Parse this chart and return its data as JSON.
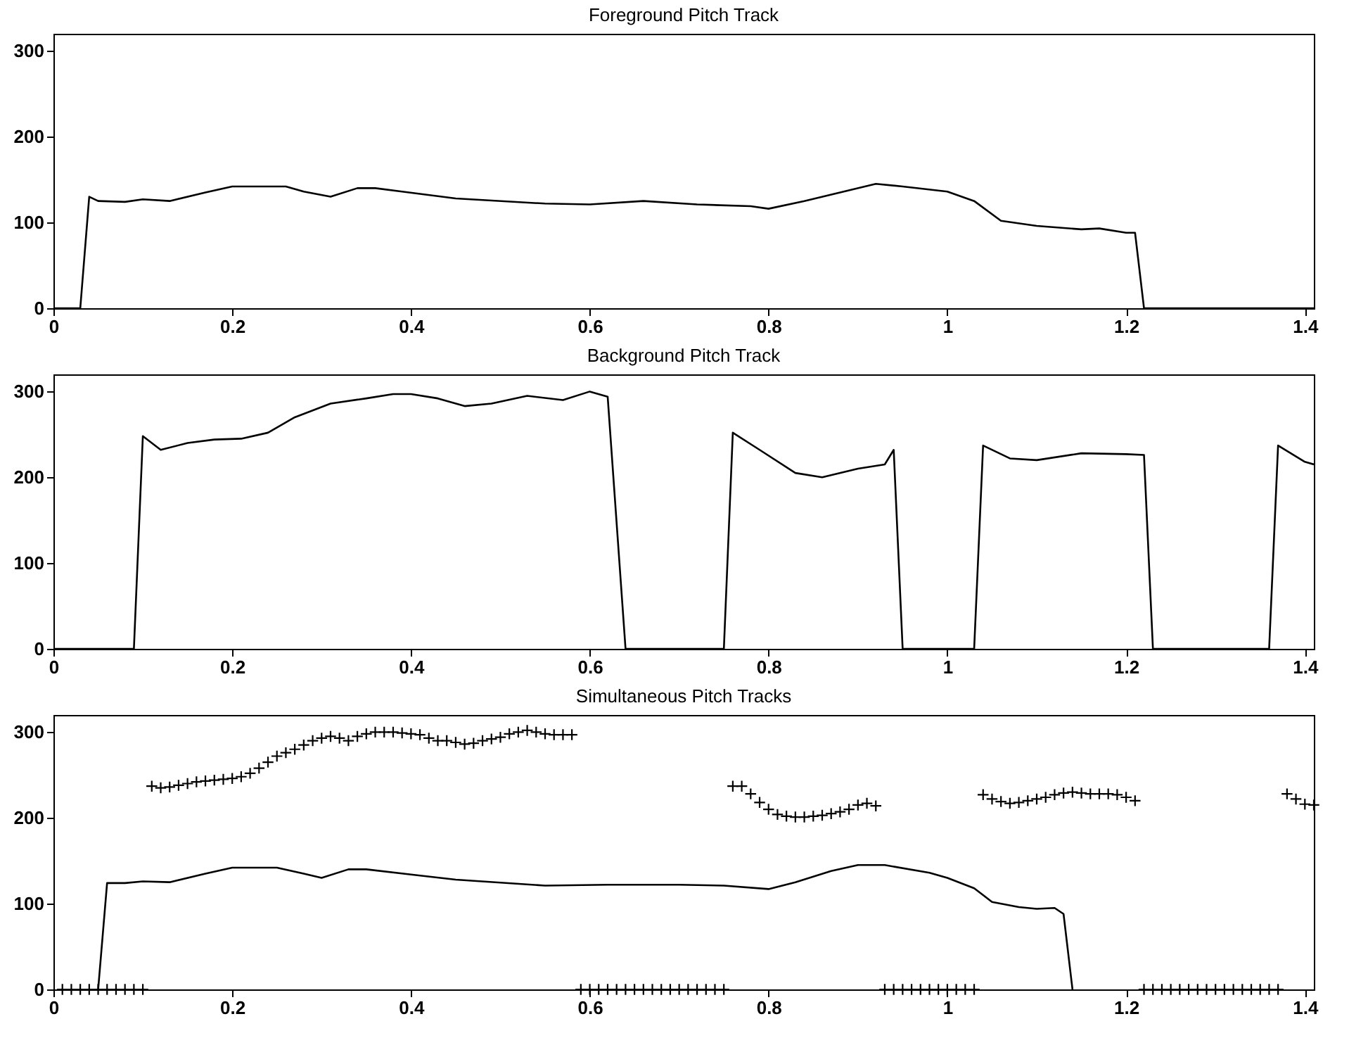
{
  "chart_data": [
    {
      "type": "line",
      "title": "Foreground Pitch Track",
      "color": "#000000",
      "line_style": "solid",
      "x": [
        0,
        0.03,
        0.04,
        0.05,
        0.08,
        0.1,
        0.13,
        0.17,
        0.2,
        0.26,
        0.28,
        0.31,
        0.34,
        0.36,
        0.39,
        0.45,
        0.55,
        0.6,
        0.66,
        0.72,
        0.78,
        0.8,
        0.84,
        0.88,
        0.92,
        0.95,
        1.0,
        1.03,
        1.06,
        1.1,
        1.15,
        1.17,
        1.2,
        1.21,
        1.22,
        1.41
      ],
      "values": [
        0,
        0,
        130,
        125,
        124,
        127,
        125,
        135,
        142,
        142,
        136,
        130,
        140,
        140,
        136,
        128,
        122,
        121,
        125,
        121,
        119,
        116,
        125,
        135,
        145,
        142,
        136,
        125,
        102,
        96,
        92,
        93,
        88,
        88,
        0,
        0
      ],
      "xlim": [
        0,
        1.41
      ],
      "ylim": [
        0,
        320
      ],
      "xticks": [
        0,
        0.2,
        0.4,
        0.6,
        0.8,
        1,
        1.2,
        1.4
      ],
      "yticks": [
        0,
        100,
        200,
        300
      ]
    },
    {
      "type": "line",
      "title": "Background Pitch Track",
      "color": "#000000",
      "line_style": "solid",
      "x": [
        0,
        0.09,
        0.1,
        0.12,
        0.15,
        0.18,
        0.21,
        0.24,
        0.27,
        0.31,
        0.35,
        0.38,
        0.4,
        0.43,
        0.46,
        0.49,
        0.53,
        0.57,
        0.6,
        0.62,
        0.64,
        0.75,
        0.76,
        0.79,
        0.83,
        0.86,
        0.9,
        0.93,
        0.94,
        0.95,
        1.03,
        1.04,
        1.07,
        1.1,
        1.15,
        1.2,
        1.22,
        1.23,
        1.36,
        1.37,
        1.4,
        1.41
      ],
      "values": [
        0,
        0,
        248,
        232,
        240,
        244,
        245,
        252,
        270,
        286,
        292,
        297,
        297,
        292,
        283,
        286,
        295,
        290,
        300,
        294,
        0,
        0,
        252,
        232,
        205,
        200,
        210,
        215,
        232,
        0,
        0,
        237,
        222,
        220,
        228,
        227,
        226,
        0,
        0,
        237,
        218,
        215
      ],
      "xlim": [
        0,
        1.41
      ],
      "ylim": [
        0,
        320
      ],
      "xticks": [
        0,
        0.2,
        0.4,
        0.6,
        0.8,
        1,
        1.2,
        1.4
      ],
      "yticks": [
        0,
        100,
        200,
        300
      ]
    },
    {
      "type": "line",
      "title": "Simultaneous Pitch Tracks",
      "series": [
        {
          "type": "line",
          "color": "#000000",
          "line_style": "solid",
          "x": [
            0.05,
            0.06,
            0.08,
            0.1,
            0.13,
            0.17,
            0.2,
            0.25,
            0.28,
            0.3,
            0.33,
            0.35,
            0.4,
            0.45,
            0.55,
            0.62,
            0.7,
            0.75,
            0.8,
            0.83,
            0.87,
            0.9,
            0.93,
            0.98,
            1.0,
            1.03,
            1.05,
            1.08,
            1.1,
            1.12,
            1.13,
            1.14
          ],
          "values": [
            0,
            124,
            124,
            126,
            125,
            135,
            142,
            142,
            135,
            130,
            140,
            140,
            134,
            128,
            121,
            122,
            122,
            121,
            117,
            125,
            138,
            145,
            145,
            136,
            130,
            118,
            102,
            96,
            94,
            95,
            88,
            0
          ]
        },
        {
          "type": "scatter",
          "color": "#000000",
          "marker": "cross",
          "x": [
            0.01,
            0.02,
            0.03,
            0.04,
            0.05,
            0.06,
            0.07,
            0.08,
            0.09,
            0.1,
            0.11,
            0.12,
            0.13,
            0.14,
            0.15,
            0.16,
            0.17,
            0.18,
            0.19,
            0.2,
            0.21,
            0.22,
            0.23,
            0.24,
            0.25,
            0.26,
            0.27,
            0.28,
            0.29,
            0.3,
            0.31,
            0.32,
            0.33,
            0.34,
            0.35,
            0.36,
            0.37,
            0.38,
            0.39,
            0.4,
            0.41,
            0.42,
            0.43,
            0.44,
            0.45,
            0.46,
            0.47,
            0.48,
            0.49,
            0.5,
            0.51,
            0.52,
            0.53,
            0.54,
            0.55,
            0.56,
            0.57,
            0.58,
            0.59,
            0.6,
            0.61,
            0.62,
            0.63,
            0.64,
            0.65,
            0.66,
            0.67,
            0.68,
            0.69,
            0.7,
            0.71,
            0.72,
            0.73,
            0.74,
            0.75,
            0.76,
            0.77,
            0.78,
            0.79,
            0.8,
            0.81,
            0.82,
            0.83,
            0.84,
            0.85,
            0.86,
            0.87,
            0.88,
            0.89,
            0.9,
            0.91,
            0.92,
            0.93,
            0.94,
            0.95,
            0.96,
            0.97,
            0.98,
            0.99,
            1.0,
            1.01,
            1.02,
            1.03,
            1.04,
            1.05,
            1.06,
            1.07,
            1.08,
            1.09,
            1.1,
            1.11,
            1.12,
            1.13,
            1.14,
            1.15,
            1.16,
            1.17,
            1.18,
            1.19,
            1.2,
            1.21,
            1.22,
            1.23,
            1.24,
            1.25,
            1.26,
            1.27,
            1.28,
            1.29,
            1.3,
            1.31,
            1.32,
            1.33,
            1.34,
            1.35,
            1.36,
            1.37,
            1.38,
            1.39,
            1.4,
            1.41
          ],
          "values": [
            0,
            0,
            0,
            0,
            0,
            0,
            0,
            0,
            0,
            0,
            237,
            235,
            236,
            238,
            240,
            242,
            243,
            244,
            245,
            246,
            248,
            252,
            258,
            265,
            272,
            276,
            280,
            285,
            290,
            293,
            295,
            293,
            290,
            295,
            298,
            300,
            300,
            300,
            299,
            298,
            297,
            293,
            290,
            290,
            288,
            286,
            287,
            290,
            292,
            294,
            298,
            300,
            302,
            300,
            298,
            297,
            297,
            297,
            0,
            0,
            0,
            0,
            0,
            0,
            0,
            0,
            0,
            0,
            0,
            0,
            0,
            0,
            0,
            0,
            0,
            237,
            237,
            228,
            218,
            210,
            204,
            202,
            201,
            201,
            202,
            203,
            205,
            207,
            210,
            215,
            217,
            214,
            0,
            0,
            0,
            0,
            0,
            0,
            0,
            0,
            0,
            0,
            0,
            227,
            222,
            219,
            217,
            218,
            220,
            222,
            224,
            227,
            229,
            230,
            229,
            228,
            228,
            228,
            227,
            224,
            220,
            0,
            0,
            0,
            0,
            0,
            0,
            0,
            0,
            0,
            0,
            0,
            0,
            0,
            0,
            0,
            0,
            228,
            222,
            216,
            215
          ]
        }
      ],
      "xlim": [
        0,
        1.41
      ],
      "ylim": [
        0,
        320
      ],
      "xticks": [
        0,
        0.2,
        0.4,
        0.6,
        0.8,
        1,
        1.2,
        1.4
      ],
      "yticks": [
        0,
        100,
        200,
        300
      ]
    }
  ]
}
